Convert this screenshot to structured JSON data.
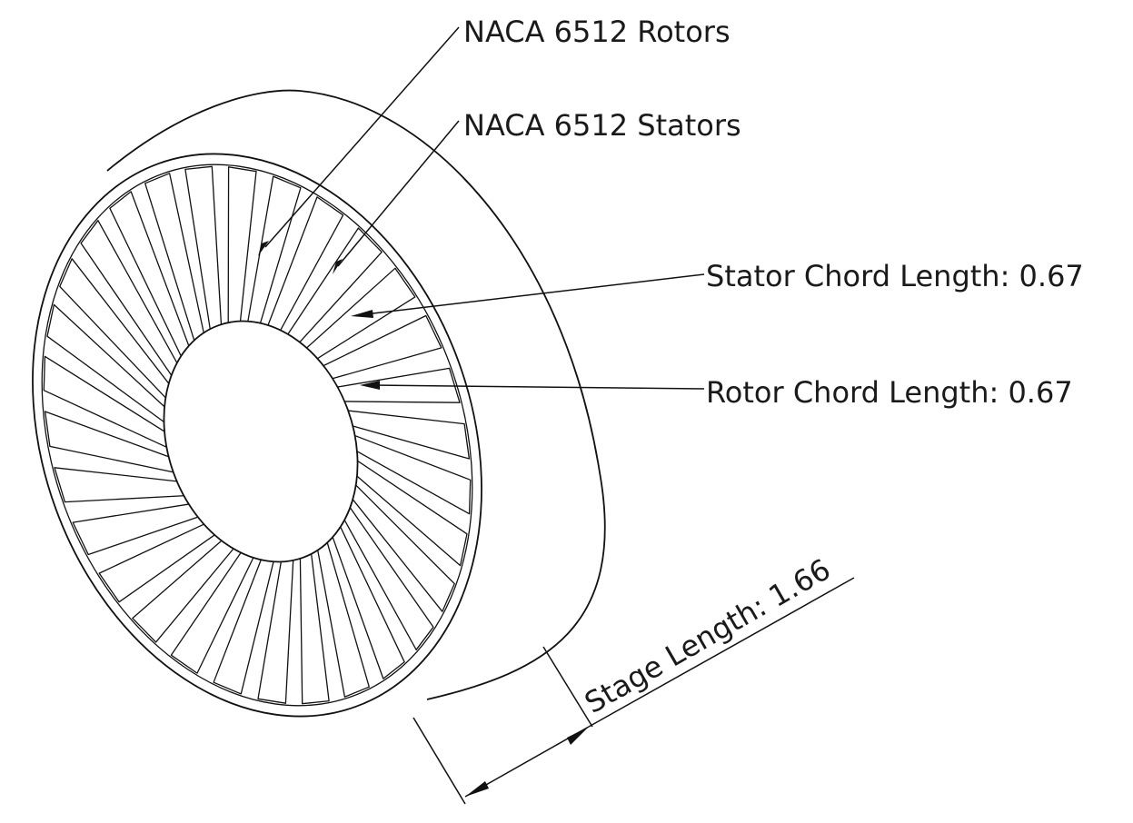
{
  "callouts": {
    "rotors": "NACA 6512 Rotors",
    "stators": "NACA 6512 Stators",
    "stator_chord": "Stator Chord Length: 0.67",
    "rotor_chord": "Rotor Chord Length: 0.67",
    "stage_length": "Stage Length: 1.66"
  },
  "colors": {
    "line": "#111111",
    "background": "#ffffff"
  }
}
